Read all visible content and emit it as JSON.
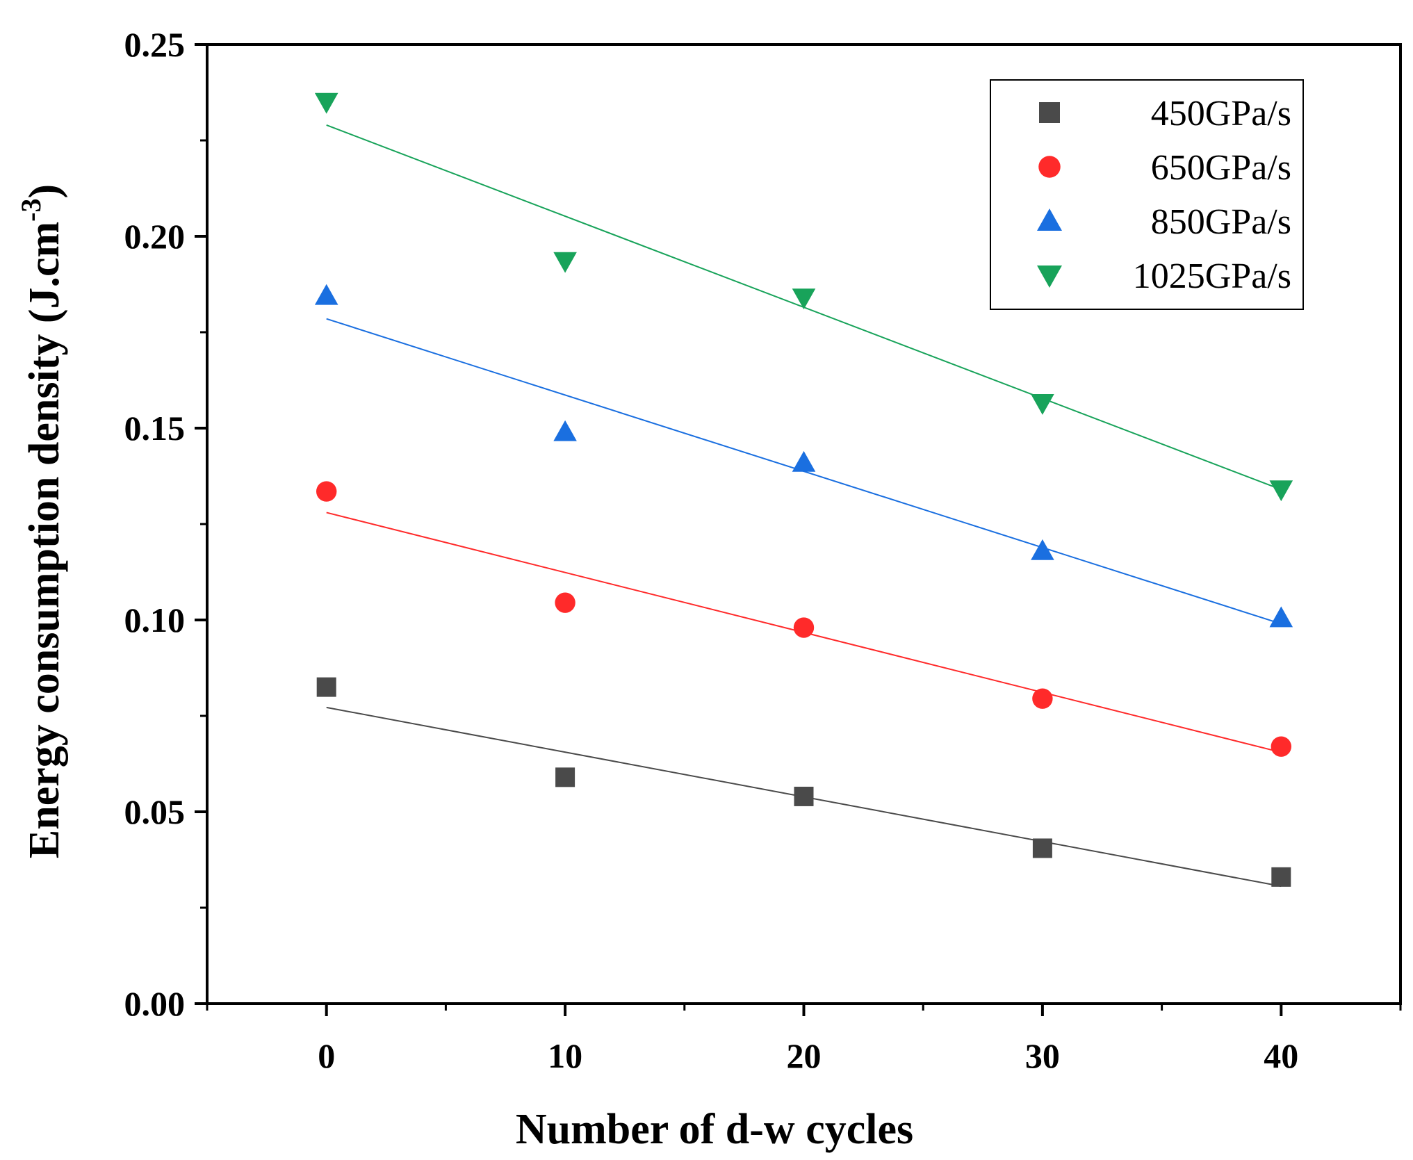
{
  "chart_data": {
    "type": "scatter",
    "xlabel": "Number of d-w cycles",
    "ylabel_main": "Energy consumption density (J.cm",
    "ylabel_sup": "-3",
    "ylabel_close": ")",
    "xlim": [
      -5,
      45
    ],
    "ylim": [
      0,
      0.25
    ],
    "x_ticks": [
      0,
      10,
      20,
      30,
      40
    ],
    "x_tick_labels": [
      "0",
      "10",
      "20",
      "30",
      "40"
    ],
    "y_ticks": [
      0,
      0.05,
      0.1,
      0.15,
      0.2,
      0.25
    ],
    "y_tick_labels": [
      "0.00",
      "0.05",
      "0.10",
      "0.15",
      "0.20",
      "0.25"
    ],
    "grid": false,
    "legend_position": "top-right",
    "x": [
      0,
      10,
      20,
      30,
      40
    ],
    "series": [
      {
        "name": "450GPa/s",
        "marker": "square",
        "color": "#4a4a4a",
        "values": [
          0.0825,
          0.059,
          0.054,
          0.0405,
          0.033
        ],
        "fit": [
          0.0772,
          0.0306
        ]
      },
      {
        "name": "650GPa/s",
        "marker": "circle",
        "color": "#ff2a2a",
        "values": [
          0.1335,
          0.1045,
          0.098,
          0.0795,
          0.067
        ],
        "fit": [
          0.128,
          0.0655
        ]
      },
      {
        "name": "850GPa/s",
        "marker": "triangle-up",
        "color": "#1a6fe0",
        "values": [
          0.1845,
          0.149,
          0.141,
          0.118,
          0.1005
        ],
        "fit": [
          0.1785,
          0.099
        ]
      },
      {
        "name": "1025GPa/s",
        "marker": "triangle-down",
        "color": "#18a35a",
        "values": [
          0.235,
          0.1935,
          0.184,
          0.1565,
          0.134
        ],
        "fit": [
          0.229,
          0.134
        ]
      }
    ]
  }
}
